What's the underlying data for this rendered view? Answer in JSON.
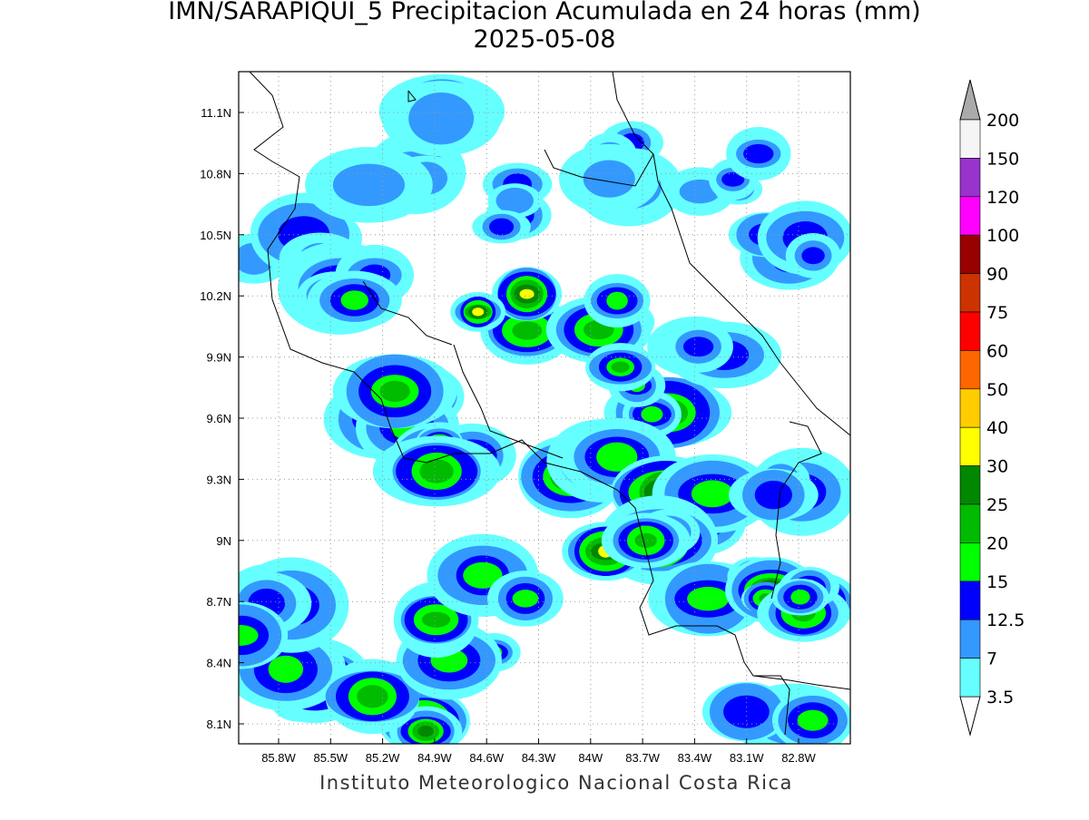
{
  "title": "IMN/SARAPIQUI_5 Precipitacion Acumulada en 24 horas (mm)",
  "subtitle": "2025-05-08",
  "footer": "Instituto Meteorologico Nacional Costa Rica",
  "map": {
    "lon_labels": [
      "85.8W",
      "85.5W",
      "85.2W",
      "84.9W",
      "84.6W",
      "84.3W",
      "84W",
      "83.7W",
      "83.4W",
      "83.1W",
      "82.8W"
    ],
    "lat_labels": [
      "11.1N",
      "10.8N",
      "10.5N",
      "10.2N",
      "9.9N",
      "9.6N",
      "9.3N",
      "9N",
      "8.7N",
      "8.4N",
      "8.1N"
    ]
  },
  "colorbar": {
    "labels": [
      "200",
      "150",
      "120",
      "100",
      "90",
      "75",
      "60",
      "50",
      "40",
      "30",
      "25",
      "20",
      "15",
      "12.5",
      "7",
      "3.5"
    ],
    "colors": [
      "#f5f5f5",
      "#9933cc",
      "#ff00ff",
      "#990000",
      "#cc3300",
      "#ff0000",
      "#ff6600",
      "#ffcc00",
      "#ffff00",
      "#008800",
      "#00bb00",
      "#00ff00",
      "#0000ff",
      "#3399ff",
      "#66ffff"
    ]
  }
}
